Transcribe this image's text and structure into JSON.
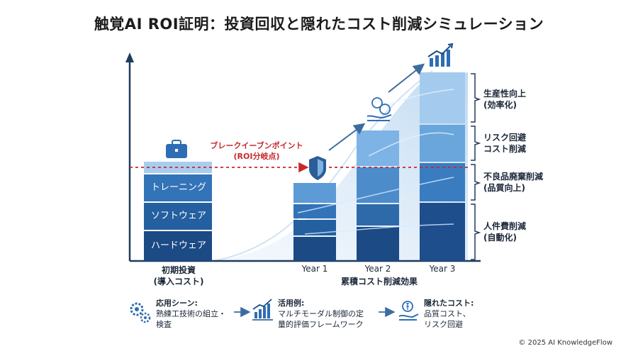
{
  "title": "触覚AI ROI証明：投資回収と隠れたコスト削減シミュレーション",
  "initial_investment": {
    "segments": [
      "トレーニング",
      "ソフトウェア",
      "ハードウェア"
    ],
    "label_line1": "初期投資",
    "label_line2": "(導入コスト)"
  },
  "break_even": {
    "line1": "ブレークイーブンポイント",
    "line2": "(ROI分岐点)"
  },
  "years": [
    "Year 1",
    "Year 2",
    "Year 3"
  ],
  "years_caption": "累積コスト削減効果",
  "savings_categories": [
    {
      "line1": "生産性向上",
      "line2": "(効率化)"
    },
    {
      "line1": "リスク回避",
      "line2": "コスト削減"
    },
    {
      "line1": "不良品廃棄削減",
      "line2": "(品質向上)"
    },
    {
      "line1": "人件費削減",
      "line2": "(自動化)"
    }
  ],
  "bottom_flow": [
    {
      "heading": "応用シーン:",
      "line1": "熟練工技術の組立・",
      "line2": "検査",
      "icon": "gears-icon"
    },
    {
      "heading": "活用例:",
      "line1": "マルチモーダル制御の定",
      "line2": "量的評価フレームワーク",
      "icon": "growth-chart-icon"
    },
    {
      "heading": "隠れたコスト:",
      "line1": "品質コスト、",
      "line2": "リスク回避",
      "icon": "money-hand-icon"
    }
  ],
  "copyright": "© 2025 AI KnowledgeFlow",
  "colors": {
    "axis": "#1f3b5c",
    "dark_blue": "#1e4e8c",
    "mid_blue": "#3373b8",
    "light_blue": "#6aa6dc",
    "pale_blue": "#a9cdee",
    "break_even_red": "#c8282c"
  }
}
